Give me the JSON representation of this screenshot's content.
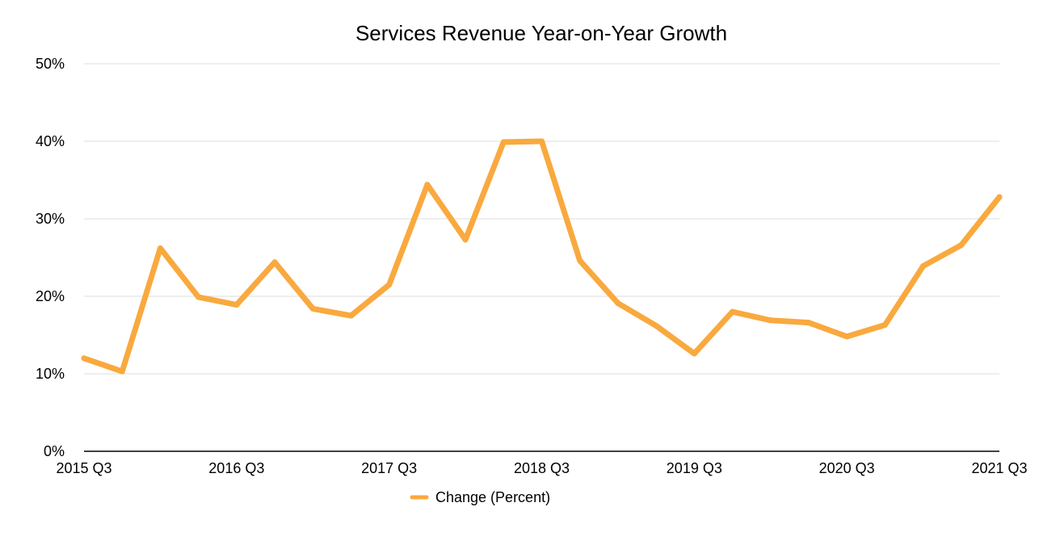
{
  "chart_data": {
    "type": "line",
    "title": "Services Revenue Year-on-Year Growth",
    "xlabel": "",
    "ylabel": "",
    "x": [
      "2015 Q3",
      "2015 Q4",
      "2016 Q1",
      "2016 Q2",
      "2016 Q3",
      "2016 Q4",
      "2017 Q1",
      "2017 Q2",
      "2017 Q3",
      "2017 Q4",
      "2018 Q1",
      "2018 Q2",
      "2018 Q3",
      "2018 Q4",
      "2019 Q1",
      "2019 Q2",
      "2019 Q3",
      "2019 Q4",
      "2020 Q1",
      "2020 Q2",
      "2020 Q3",
      "2020 Q4",
      "2021 Q1",
      "2021 Q2",
      "2021 Q3"
    ],
    "x_tick_labels": [
      "2015 Q3",
      "2016 Q3",
      "2017 Q3",
      "2018 Q3",
      "2019 Q3",
      "2020 Q3",
      "2021 Q3"
    ],
    "y_ticks": [
      0,
      10,
      20,
      30,
      40,
      50
    ],
    "y_tick_labels": [
      "0%",
      "10%",
      "20%",
      "30%",
      "40%",
      "50%"
    ],
    "ylim": [
      0,
      50
    ],
    "grid": true,
    "legend_position": "bottom-center",
    "series": [
      {
        "name": "Change (Percent)",
        "color": "#F9A93E",
        "values": [
          12.0,
          10.3,
          26.2,
          19.9,
          18.9,
          24.4,
          18.4,
          17.5,
          21.5,
          34.4,
          27.3,
          39.9,
          40.0,
          24.6,
          19.1,
          16.2,
          12.6,
          18.0,
          16.9,
          16.6,
          14.8,
          16.3,
          23.9,
          26.6,
          32.8
        ]
      }
    ]
  }
}
